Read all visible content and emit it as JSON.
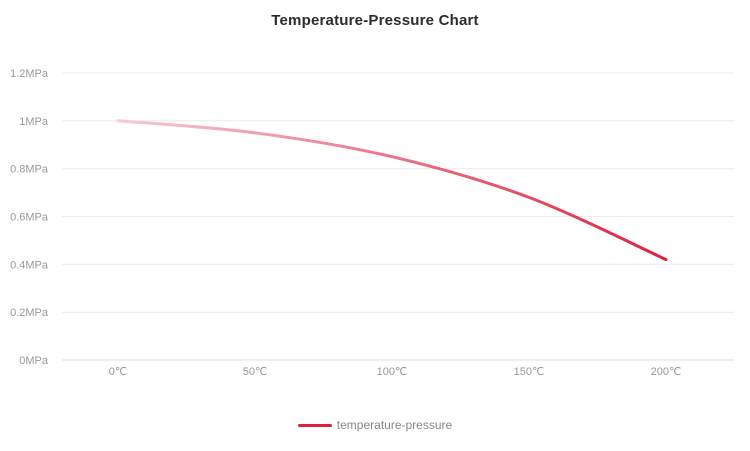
{
  "chart_data": {
    "type": "line",
    "title": "Temperature-Pressure Chart",
    "categories": [
      "0℃",
      "50℃",
      "100℃",
      "150℃",
      "200℃"
    ],
    "series": [
      {
        "name": "temperature-pressure",
        "values": [
          1.0,
          0.95,
          0.85,
          0.68,
          0.42
        ],
        "color_start": "#f6cbd5",
        "color_end": "#e0203c"
      }
    ],
    "xlabel": "",
    "ylabel": "",
    "ylim": [
      0,
      1.2
    ],
    "y_tick_values": [
      0,
      0.2,
      0.4,
      0.6,
      0.8,
      1.0,
      1.2
    ],
    "y_ticks": [
      "0MPa",
      "0.2MPa",
      "0.4MPa",
      "0.6MPa",
      "0.8MPa",
      "1MPa",
      "1.2MPa"
    ],
    "grid": "horizontal",
    "legend_position": "bottom",
    "colors": {
      "grid": "#ececec",
      "axis": "#e0e0e0",
      "tick_label": "#999999",
      "title": "#2c2c2c",
      "legend_label": "#888888"
    }
  }
}
